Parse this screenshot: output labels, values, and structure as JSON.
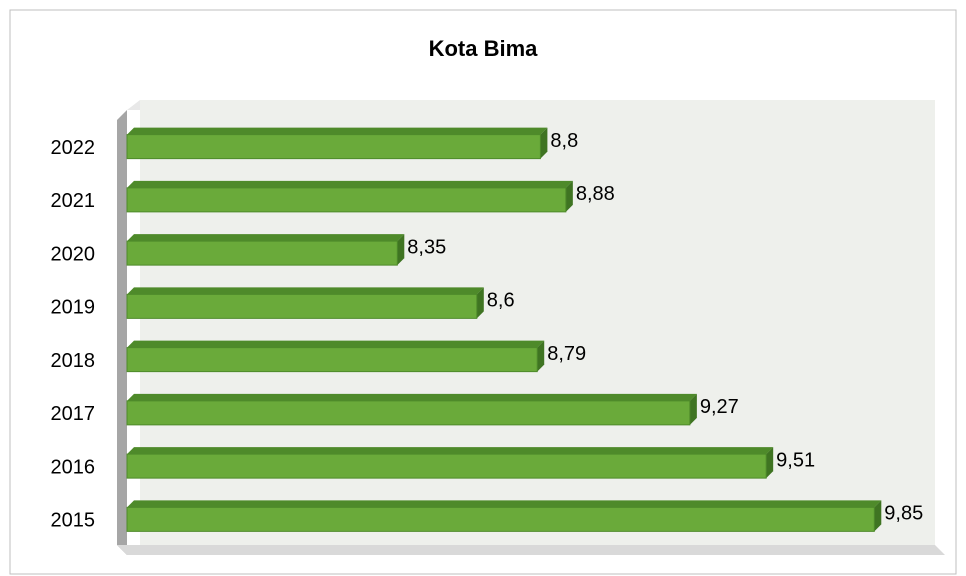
{
  "chart_data": {
    "type": "bar",
    "orientation": "horizontal",
    "title": "Kota Bima",
    "categories": [
      "2022",
      "2021",
      "2020",
      "2019",
      "2018",
      "2017",
      "2016",
      "2015"
    ],
    "values": [
      8.8,
      8.88,
      8.35,
      8.6,
      8.79,
      9.27,
      9.51,
      9.85
    ],
    "value_labels": [
      "8,8",
      "8,88",
      "8,35",
      "8,6",
      "8,79",
      "9,27",
      "9,51",
      "9,85"
    ],
    "color": "#6aaa3a",
    "xlim": [
      7.5,
      10
    ]
  }
}
